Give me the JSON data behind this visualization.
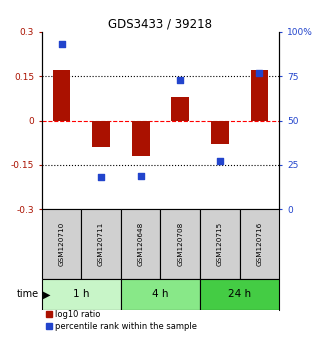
{
  "title": "GDS3433 / 39218",
  "samples": [
    "GSM120710",
    "GSM120711",
    "GSM120648",
    "GSM120708",
    "GSM120715",
    "GSM120716"
  ],
  "log10_ratio": [
    0.17,
    -0.09,
    -0.12,
    0.08,
    -0.08,
    0.17
  ],
  "percentile_rank": [
    93,
    18,
    19,
    73,
    27,
    77
  ],
  "groups": [
    {
      "label": "1 h",
      "indices": [
        0,
        1
      ],
      "color": "#c8f5c8"
    },
    {
      "label": "4 h",
      "indices": [
        2,
        3
      ],
      "color": "#88e888"
    },
    {
      "label": "24 h",
      "indices": [
        4,
        5
      ],
      "color": "#44cc44"
    }
  ],
  "bar_color": "#aa1100",
  "dot_color": "#2244cc",
  "ylim_left": [
    -0.3,
    0.3
  ],
  "ylim_right": [
    0,
    100
  ],
  "yticks_left": [
    -0.3,
    -0.15,
    0,
    0.15,
    0.3
  ],
  "yticks_right": [
    0,
    25,
    50,
    75,
    100
  ],
  "hlines": [
    -0.15,
    0,
    0.15
  ],
  "hline_colors": [
    "black",
    "red",
    "black"
  ],
  "hline_styles": [
    "dotted",
    "dotted",
    "dotted"
  ],
  "hline_zero_style": "dashed",
  "bar_width": 0.45,
  "dot_size": 22,
  "sample_box_color": "#d0d0d0",
  "sample_box_edge": "#000000",
  "legend_red_label": "log10 ratio",
  "legend_blue_label": "percentile rank within the sample",
  "time_label": "time",
  "background_color": "#ffffff"
}
